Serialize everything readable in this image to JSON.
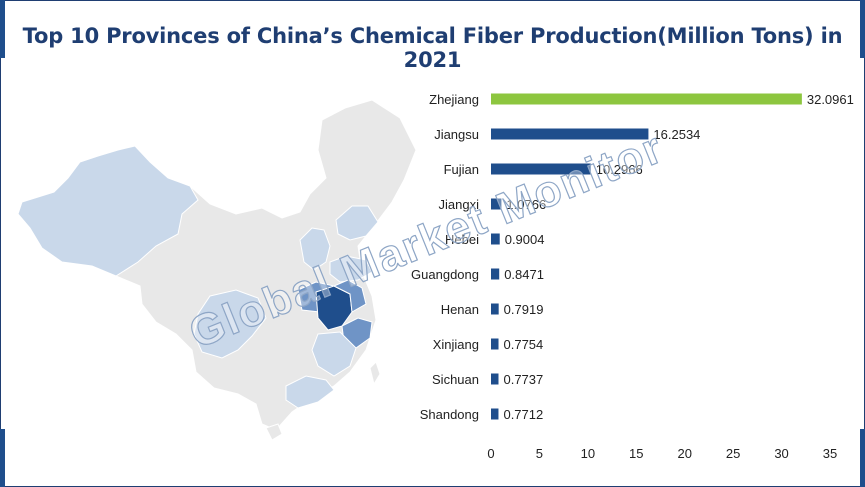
{
  "title": "Top 10 Provinces of China’s Chemical Fiber Production(Million Tons) in 2021",
  "watermark": "Global Market Monitor",
  "colors": {
    "frame": "#1f3e72",
    "corner": "#1f4e8c",
    "plot_bg": "#f2f2f2",
    "highlight_bar": "#8dc63f",
    "bar": "#1f4e8c",
    "title": "#1f3e72",
    "map_base": "#e6e6e6",
    "map_light": "#c9d8ea",
    "map_mid": "#6f94c6",
    "map_dark": "#1f4e8c"
  },
  "chart_data": {
    "type": "bar",
    "orientation": "horizontal",
    "title": "Top 10 Provinces of China’s Chemical Fiber Production(Million Tons) in 2021",
    "categories": [
      "Zhejiang",
      "Jiangsu",
      "Fujian",
      "Jiangxi",
      "Hebei",
      "Guangdong",
      "Henan",
      "Xinjiang",
      "Sichuan",
      "Shandong"
    ],
    "values": [
      32.0961,
      16.2534,
      10.2966,
      1.0766,
      0.9004,
      0.8471,
      0.7919,
      0.7754,
      0.7737,
      0.7712
    ],
    "value_labels": [
      "32.0961",
      "16.2534",
      "10.2966",
      "1.0766",
      "0.9004",
      "0.8471",
      "0.7919",
      "0.7754",
      "0.7737",
      "0.7712"
    ],
    "xlim": [
      0,
      35
    ],
    "xticks": [
      0,
      5,
      10,
      15,
      20,
      25,
      30,
      35
    ],
    "grid": false,
    "legend": "none",
    "highlight_category": "Zhejiang"
  }
}
